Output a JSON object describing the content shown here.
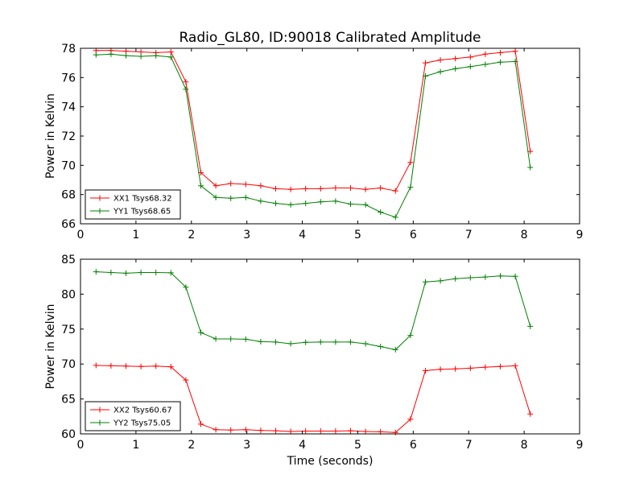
{
  "chart_data": [
    {
      "type": "line",
      "title": "Radio_GL80, ID:90018 Calibrated Amplitude",
      "xlabel": "",
      "ylabel": "Power in Kelvin",
      "xlim": [
        0,
        9
      ],
      "ylim": [
        66,
        78
      ],
      "xticks": [
        "0",
        "1",
        "2",
        "3",
        "4",
        "5",
        "6",
        "7",
        "8",
        "9"
      ],
      "yticks": [
        "66",
        "68",
        "70",
        "72",
        "74",
        "76",
        "78"
      ],
      "legend_position": "lower-left",
      "x": [
        0.28,
        0.55,
        0.82,
        1.09,
        1.36,
        1.63,
        1.9,
        2.17,
        2.44,
        2.71,
        2.98,
        3.25,
        3.52,
        3.79,
        4.06,
        4.33,
        4.6,
        4.87,
        5.14,
        5.41,
        5.68,
        5.95,
        6.22,
        6.49,
        6.76,
        7.03,
        7.3,
        7.57,
        7.84,
        8.11
      ],
      "series": [
        {
          "name": "XX1 Tsys68.32",
          "color": "#ff0000",
          "values": [
            77.85,
            77.85,
            77.8,
            77.75,
            77.7,
            77.75,
            75.7,
            69.5,
            68.6,
            68.75,
            68.7,
            68.6,
            68.4,
            68.35,
            68.4,
            68.4,
            68.45,
            68.45,
            68.35,
            68.45,
            68.25,
            70.2,
            77.0,
            77.2,
            77.3,
            77.4,
            77.6,
            77.7,
            77.8,
            70.95
          ]
        },
        {
          "name": "YY1 Tsys68.65",
          "color": "#008000",
          "values": [
            77.55,
            77.6,
            77.5,
            77.45,
            77.5,
            77.4,
            75.2,
            68.6,
            67.8,
            67.75,
            67.8,
            67.55,
            67.4,
            67.3,
            67.4,
            67.5,
            67.55,
            67.35,
            67.3,
            66.8,
            66.45,
            68.5,
            76.1,
            76.4,
            76.6,
            76.75,
            76.9,
            77.05,
            77.1,
            69.85
          ]
        }
      ]
    },
    {
      "type": "line",
      "title": "",
      "xlabel": "Time (seconds)",
      "ylabel": "Power in Kelvin",
      "xlim": [
        0,
        9
      ],
      "ylim": [
        60,
        85
      ],
      "xticks": [
        "0",
        "1",
        "2",
        "3",
        "4",
        "5",
        "6",
        "7",
        "8",
        "9"
      ],
      "yticks": [
        "60",
        "65",
        "70",
        "75",
        "80",
        "85"
      ],
      "legend_position": "lower-left",
      "x": [
        0.28,
        0.55,
        0.82,
        1.09,
        1.36,
        1.63,
        1.9,
        2.17,
        2.44,
        2.71,
        2.98,
        3.25,
        3.52,
        3.79,
        4.06,
        4.33,
        4.6,
        4.87,
        5.14,
        5.41,
        5.68,
        5.95,
        6.22,
        6.49,
        6.76,
        7.03,
        7.3,
        7.57,
        7.84,
        8.11
      ],
      "series": [
        {
          "name": "XX2 Tsys60.67",
          "color": "#ff0000",
          "values": [
            69.8,
            69.75,
            69.7,
            69.65,
            69.7,
            69.6,
            67.7,
            61.4,
            60.6,
            60.55,
            60.6,
            60.5,
            60.45,
            60.35,
            60.4,
            60.4,
            60.4,
            60.45,
            60.35,
            60.3,
            60.2,
            62.1,
            69.05,
            69.25,
            69.3,
            69.4,
            69.55,
            69.65,
            69.75,
            62.85
          ]
        },
        {
          "name": "YY2 Tsys75.05",
          "color": "#008000",
          "values": [
            83.2,
            83.1,
            83.0,
            83.1,
            83.1,
            83.05,
            81.0,
            74.5,
            73.6,
            73.6,
            73.55,
            73.2,
            73.15,
            72.9,
            73.1,
            73.15,
            73.15,
            73.15,
            72.9,
            72.5,
            72.05,
            74.1,
            81.75,
            81.9,
            82.2,
            82.35,
            82.45,
            82.6,
            82.55,
            75.4
          ]
        }
      ]
    }
  ]
}
